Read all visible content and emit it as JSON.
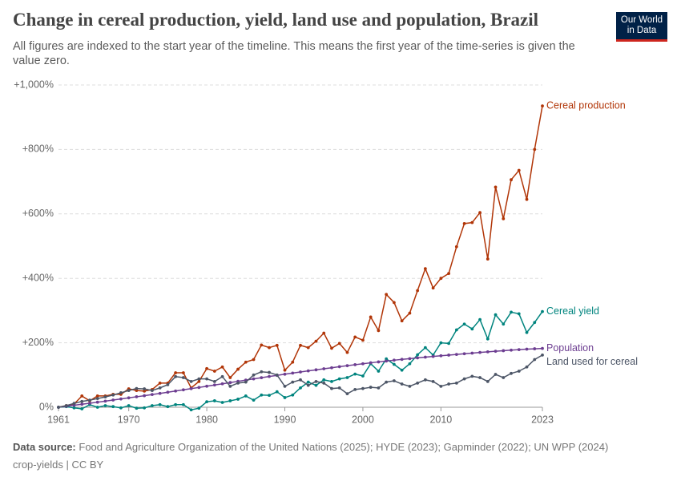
{
  "logo": [
    "Our World",
    "in Data"
  ],
  "chart_data": {
    "type": "line",
    "title": "Change in cereal production, yield, land use and population, Brazil",
    "subtitle": "All figures are indexed to the start year of the timeline. This means the first year of the time-series is given the value zero.",
    "source_label": "Data source:",
    "source": "Food and Agriculture Organization of the United Nations (2025); HYDE (2023); Gapminder (2022); UN WPP (2024)",
    "note": "crop-yields | CC BY",
    "x": [
      1961,
      1962,
      1963,
      1964,
      1965,
      1966,
      1967,
      1968,
      1969,
      1970,
      1971,
      1972,
      1973,
      1974,
      1975,
      1976,
      1977,
      1978,
      1979,
      1980,
      1981,
      1982,
      1983,
      1984,
      1985,
      1986,
      1987,
      1988,
      1989,
      1990,
      1991,
      1992,
      1993,
      1994,
      1995,
      1996,
      1997,
      1998,
      1999,
      2000,
      2001,
      2002,
      2003,
      2004,
      2005,
      2006,
      2007,
      2008,
      2009,
      2010,
      2011,
      2012,
      2013,
      2014,
      2015,
      2016,
      2017,
      2018,
      2019,
      2020,
      2021,
      2022,
      2023
    ],
    "xlim": [
      1961,
      2023
    ],
    "xticks": [
      1961,
      1970,
      1980,
      1990,
      2000,
      2010,
      2023
    ],
    "ylim": [
      0,
      1000
    ],
    "yticks": [
      {
        "value": 0,
        "label": "0%"
      },
      {
        "value": 200,
        "label": "+200%"
      },
      {
        "value": 400,
        "label": "+400%"
      },
      {
        "value": 600,
        "label": "+600%"
      },
      {
        "value": 800,
        "label": "+800%"
      },
      {
        "value": 1000,
        "label": "+1,000%"
      }
    ],
    "grid": true,
    "series": [
      {
        "name": "Cereal production",
        "color": "#b13507",
        "values": [
          0,
          5,
          10,
          35,
          20,
          35,
          35,
          40,
          40,
          57,
          52,
          50,
          55,
          75,
          75,
          107,
          107,
          60,
          80,
          120,
          112,
          125,
          92,
          118,
          140,
          148,
          193,
          185,
          192,
          115,
          140,
          192,
          185,
          205,
          230,
          183,
          198,
          170,
          218,
          208,
          280,
          238,
          350,
          325,
          268,
          292,
          362,
          430,
          370,
          400,
          415,
          498,
          570,
          573,
          604,
          460,
          683,
          585,
          706,
          735,
          645,
          800,
          935
        ]
      },
      {
        "name": "Cereal yield",
        "color": "#00847e",
        "values": [
          0,
          2,
          -2,
          -5,
          8,
          0,
          5,
          2,
          -2,
          5,
          -3,
          -2,
          5,
          8,
          2,
          8,
          8,
          -8,
          -3,
          17,
          20,
          15,
          20,
          25,
          35,
          22,
          38,
          37,
          48,
          30,
          38,
          60,
          78,
          68,
          85,
          80,
          88,
          92,
          103,
          97,
          135,
          112,
          150,
          133,
          115,
          135,
          163,
          185,
          162,
          200,
          198,
          240,
          258,
          243,
          272,
          212,
          287,
          258,
          295,
          290,
          232,
          263,
          297
        ]
      },
      {
        "name": "Population",
        "color": "#6d3e91",
        "values": [
          0,
          3,
          6.1,
          9.3,
          12.5,
          15.7,
          19,
          22.3,
          25.7,
          29.1,
          32.5,
          35.9,
          39.4,
          43,
          46.6,
          50.3,
          54,
          57.7,
          61.4,
          65.2,
          69,
          72.8,
          76.6,
          80.4,
          84.2,
          88,
          91.7,
          95.4,
          99,
          102.5,
          106,
          109.4,
          112.8,
          116.1,
          119.4,
          122.6,
          125.8,
          128.9,
          132,
          135,
          137.9,
          140.7,
          143.4,
          146,
          148.5,
          150.9,
          153.2,
          155.4,
          157.6,
          159.7,
          161.8,
          163.9,
          166,
          168,
          170,
          171.9,
          173.7,
          175.5,
          177.2,
          178.8,
          180.2,
          181.4,
          182.5
        ]
      },
      {
        "name": "Land used for cereal",
        "color": "#4c5566",
        "values": [
          0,
          5,
          12,
          18,
          22,
          27,
          32,
          38,
          45,
          52,
          58,
          57,
          52,
          60,
          70,
          95,
          92,
          80,
          88,
          88,
          80,
          95,
          65,
          75,
          78,
          100,
          110,
          108,
          100,
          65,
          78,
          85,
          68,
          80,
          75,
          58,
          60,
          42,
          55,
          58,
          62,
          60,
          78,
          82,
          72,
          65,
          75,
          85,
          80,
          65,
          72,
          75,
          88,
          96,
          92,
          80,
          102,
          92,
          105,
          112,
          125,
          148,
          162
        ]
      }
    ]
  }
}
